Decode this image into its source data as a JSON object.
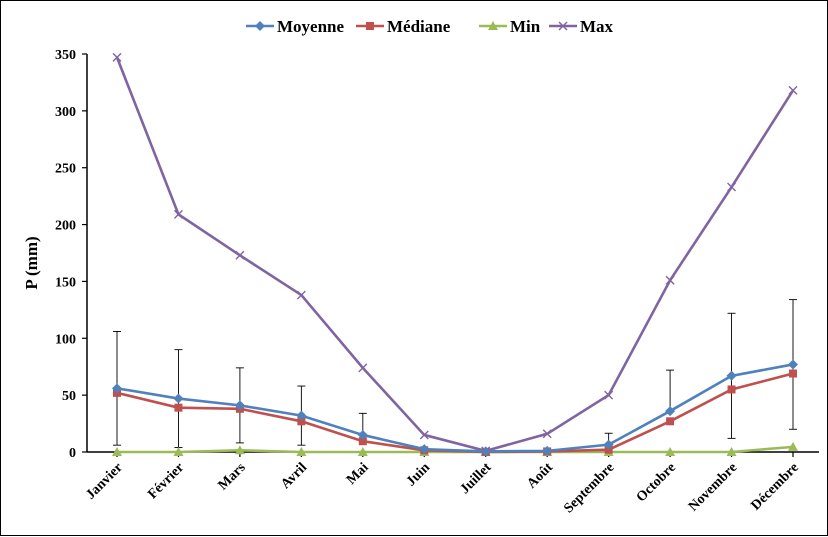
{
  "chart_data": {
    "type": "line",
    "title": "",
    "xlabel": "",
    "ylabel": "P (mm)",
    "ylim": [
      0,
      350
    ],
    "yticks": [
      "0",
      "50",
      "100",
      "150",
      "200",
      "250",
      "300",
      "350"
    ],
    "grid": false,
    "legend_position": "top",
    "categories": [
      "Janvier",
      "Février",
      "Mars",
      "Avril",
      "Mai",
      "Juin",
      "Juillet",
      "Août",
      "Septembre",
      "Octobre",
      "Novembre",
      "Décembre"
    ],
    "series": [
      {
        "name": "Moyenne",
        "color": "#4F81BD",
        "marker": "diamond",
        "values": [
          56,
          47,
          41,
          32,
          15,
          2.5,
          0.5,
          1,
          6.5,
          36,
          67,
          77
        ],
        "error_upper": [
          50,
          43,
          33,
          26,
          19,
          0,
          0,
          0,
          10,
          36,
          55,
          57
        ],
        "error_lower": [
          50,
          43,
          33,
          26,
          0,
          0,
          0,
          0,
          0,
          0,
          55,
          57
        ]
      },
      {
        "name": "Médiane",
        "color": "#C0504D",
        "marker": "square",
        "values": [
          52,
          39,
          38,
          27,
          9.5,
          1.5,
          0,
          0.5,
          2,
          27,
          55,
          69
        ]
      },
      {
        "name": "Min",
        "color": "#9BBB59",
        "marker": "triangle",
        "values": [
          0,
          0,
          1.5,
          0,
          0,
          0,
          0,
          0,
          0,
          0,
          0,
          4.5
        ]
      },
      {
        "name": "Max",
        "color": "#8064A2",
        "marker": "x",
        "values": [
          347,
          209,
          173,
          138,
          74,
          15,
          1,
          16,
          50,
          151,
          233,
          318
        ]
      }
    ]
  }
}
